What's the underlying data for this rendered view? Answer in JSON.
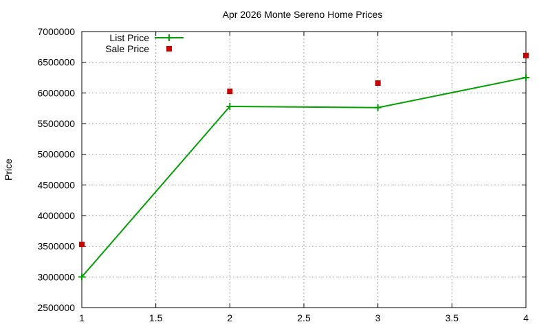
{
  "chart_data": {
    "type": "line",
    "title": "Apr 2026 Monte Sereno Home Prices",
    "xlabel": "",
    "ylabel": "Price",
    "xlim": [
      1,
      4
    ],
    "ylim": [
      2500000,
      7000000
    ],
    "x_ticks": [
      "1",
      "1.5",
      "2",
      "2.5",
      "3",
      "3.5",
      "4"
    ],
    "x_tick_values": [
      1,
      1.5,
      2,
      2.5,
      3,
      3.5,
      4
    ],
    "y_ticks": [
      "2500000",
      "3000000",
      "3500000",
      "4000000",
      "4500000",
      "5000000",
      "5500000",
      "6000000",
      "6500000",
      "7000000"
    ],
    "y_tick_values": [
      2500000,
      3000000,
      3500000,
      4000000,
      4500000,
      5000000,
      5500000,
      6000000,
      6500000,
      7000000
    ],
    "grid": true,
    "legend_position": "top-left",
    "series": [
      {
        "name": "List Price",
        "style": "linespoints",
        "color": "#00a000",
        "x": [
          1,
          2,
          3,
          4
        ],
        "values": [
          3000000,
          5780000,
          5760000,
          6250000
        ]
      },
      {
        "name": "Sale Price",
        "style": "points",
        "color": "#cc0000",
        "x": [
          1,
          2,
          3,
          4
        ],
        "values": [
          3530000,
          6025000,
          6160000,
          6610000
        ]
      }
    ]
  }
}
